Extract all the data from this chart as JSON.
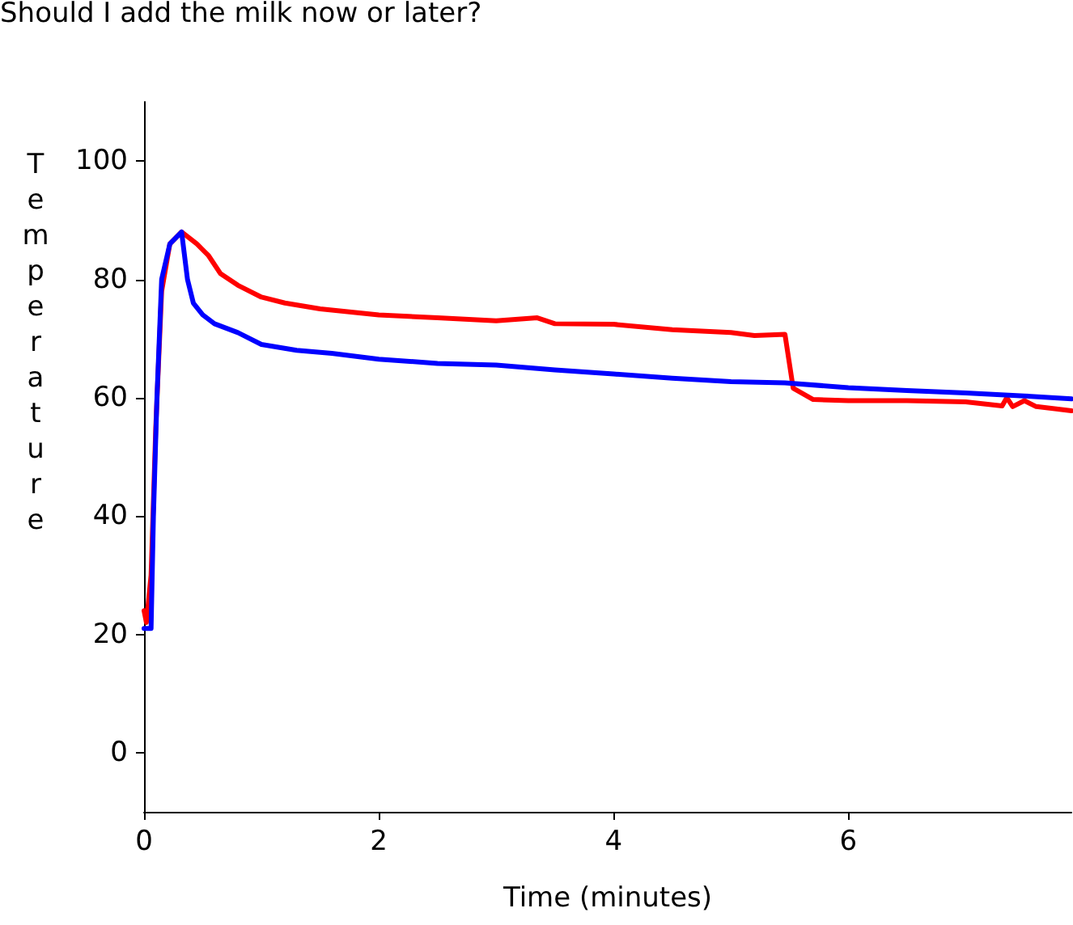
{
  "chart_data": {
    "type": "line",
    "title": "Should I add the milk now or later?",
    "xlabel": "Time (minutes)",
    "ylabel": "Temperature",
    "xlim": [
      0,
      7.9
    ],
    "xticks": [
      0,
      2,
      4,
      6
    ],
    "ylim": [
      -10,
      110
    ],
    "yticks": [
      0,
      20,
      40,
      60,
      80,
      100
    ],
    "grid": false,
    "marker": "none",
    "line_style": "solid",
    "series": [
      {
        "color": "#ff0000",
        "x": [
          0,
          0.02,
          0.06,
          0.1,
          0.15,
          0.22,
          0.32,
          0.45,
          0.55,
          0.65,
          0.8,
          1.0,
          1.2,
          1.5,
          2,
          2.5,
          3,
          3.35,
          3.5,
          4,
          4.5,
          5,
          5.2,
          5.46,
          5.53,
          5.7,
          6,
          6.5,
          7,
          7.31,
          7.35,
          7.4,
          7.5,
          7.6,
          7.9
        ],
        "values": [
          24,
          22,
          30,
          55,
          78,
          86,
          88,
          86,
          84,
          81,
          79,
          77,
          76,
          75,
          74,
          73.5,
          73,
          73.5,
          72.5,
          72.4,
          71.5,
          71,
          70.5,
          70.7,
          61.6,
          59.7,
          59.5,
          59.5,
          59.3,
          58.6,
          60,
          58.5,
          59.5,
          58.5,
          57.8
        ]
      },
      {
        "color": "#0000ff",
        "x": [
          0,
          0.06,
          0.08,
          0.11,
          0.15,
          0.22,
          0.32,
          0.37,
          0.42,
          0.5,
          0.6,
          0.8,
          1.0,
          1.3,
          1.6,
          2,
          2.5,
          3,
          3.5,
          4,
          4.5,
          5,
          5.46,
          6,
          6.5,
          7,
          7.5,
          7.9
        ],
        "values": [
          21,
          21,
          40,
          60,
          80,
          86,
          88,
          80,
          76,
          74,
          72.5,
          71,
          69,
          68,
          67.5,
          66.5,
          65.8,
          65.5,
          64.7,
          64,
          63.3,
          62.7,
          62.5,
          61.7,
          61.2,
          60.8,
          60.3,
          59.8
        ]
      }
    ]
  }
}
